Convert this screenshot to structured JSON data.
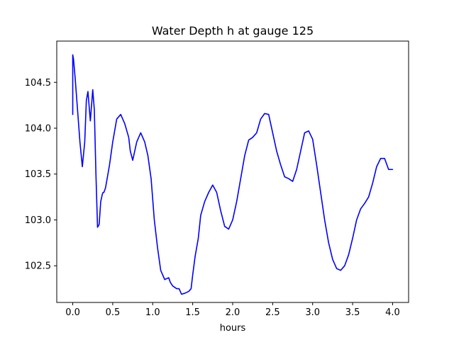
{
  "chart_data": {
    "type": "line",
    "title": "Water Depth h at gauge 125",
    "xlabel": "hours",
    "ylabel": "",
    "xlim": [
      -0.2,
      4.2
    ],
    "ylim": [
      102.1,
      104.95
    ],
    "xticks": [
      0.0,
      0.5,
      1.0,
      1.5,
      2.0,
      2.5,
      3.0,
      3.5,
      4.0
    ],
    "xtick_labels": [
      "0.0",
      "0.5",
      "1.0",
      "1.5",
      "2.0",
      "2.5",
      "3.0",
      "3.5",
      "4.0"
    ],
    "yticks": [
      102.5,
      103.0,
      103.5,
      104.0,
      104.5
    ],
    "ytick_labels": [
      "102.5",
      "103.0",
      "103.5",
      "104.0",
      "104.5"
    ],
    "grid": false,
    "legend": "none",
    "series": [
      {
        "color": "#0000ff",
        "x": [
          0.0,
          0.0,
          0.01,
          0.03,
          0.06,
          0.09,
          0.12,
          0.15,
          0.17,
          0.19,
          0.22,
          0.25,
          0.27,
          0.29,
          0.31,
          0.33,
          0.35,
          0.37,
          0.38,
          0.39,
          0.41,
          0.43,
          0.46,
          0.5,
          0.55,
          0.6,
          0.65,
          0.7,
          0.72,
          0.75,
          0.8,
          0.85,
          0.9,
          0.94,
          0.98,
          1.02,
          1.06,
          1.1,
          1.15,
          1.2,
          1.22,
          1.25,
          1.3,
          1.33,
          1.36,
          1.4,
          1.45,
          1.48,
          1.5,
          1.53,
          1.57,
          1.6,
          1.65,
          1.7,
          1.75,
          1.8,
          1.85,
          1.9,
          1.95,
          2.0,
          2.05,
          2.1,
          2.15,
          2.2,
          2.25,
          2.3,
          2.35,
          2.4,
          2.45,
          2.5,
          2.55,
          2.6,
          2.65,
          2.7,
          2.75,
          2.8,
          2.85,
          2.9,
          2.95,
          3.0,
          3.05,
          3.1,
          3.15,
          3.2,
          3.25,
          3.3,
          3.35,
          3.4,
          3.45,
          3.5,
          3.55,
          3.6,
          3.65,
          3.7,
          3.75,
          3.8,
          3.85,
          3.9,
          3.95,
          4.0
        ],
        "y": [
          104.15,
          104.8,
          104.75,
          104.55,
          104.2,
          103.85,
          103.58,
          103.85,
          104.3,
          104.4,
          104.08,
          104.42,
          104.2,
          103.5,
          102.92,
          102.95,
          103.2,
          103.28,
          103.3,
          103.3,
          103.35,
          103.45,
          103.6,
          103.85,
          104.1,
          104.15,
          104.05,
          103.9,
          103.75,
          103.65,
          103.85,
          103.95,
          103.85,
          103.7,
          103.45,
          103.0,
          102.7,
          102.45,
          102.35,
          102.37,
          102.32,
          102.28,
          102.25,
          102.25,
          102.19,
          102.2,
          102.22,
          102.25,
          102.4,
          102.6,
          102.8,
          103.05,
          103.2,
          103.3,
          103.38,
          103.3,
          103.1,
          102.93,
          102.9,
          103.0,
          103.2,
          103.45,
          103.7,
          103.87,
          103.9,
          103.95,
          104.1,
          104.16,
          104.15,
          103.95,
          103.75,
          103.6,
          103.47,
          103.45,
          103.42,
          103.55,
          103.75,
          103.95,
          103.97,
          103.88,
          103.6,
          103.3,
          103.0,
          102.75,
          102.57,
          102.47,
          102.45,
          102.5,
          102.62,
          102.8,
          103.0,
          103.12,
          103.18,
          103.25,
          103.4,
          103.58,
          103.67,
          103.67,
          103.55,
          103.55
        ]
      }
    ]
  }
}
